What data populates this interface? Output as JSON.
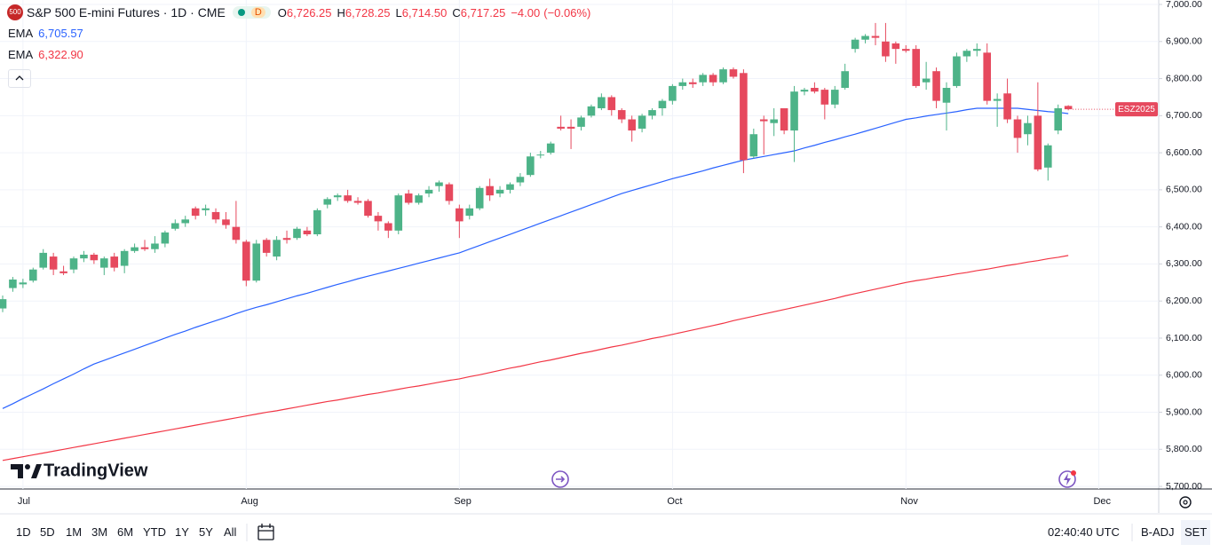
{
  "header": {
    "badge": "500",
    "symbol": "S&P 500 E-mini Futures · 1D · CME",
    "status": "D",
    "ohlc": [
      {
        "key": "O",
        "value": 6726.25,
        "label": "6,726.25"
      },
      {
        "key": "H",
        "value": 6728.25,
        "label": "6,728.25"
      },
      {
        "key": "L",
        "value": 6714.5,
        "label": "6,714.50"
      },
      {
        "key": "C",
        "value": 6717.25,
        "label": "6,717.25"
      }
    ],
    "change": {
      "value": -4,
      "label": "−4.00"
    },
    "change_pct": {
      "value": -0.06,
      "label": "(−0.06%)"
    }
  },
  "chart_data": {
    "type": "candlestick",
    "grid": true,
    "up_color": "#4db388",
    "down_color": "#e6495e",
    "last_label": "ESZ2025",
    "categories": [
      null,
      null,
      "Jul",
      null,
      null,
      null,
      null,
      null,
      null,
      null,
      null,
      null,
      null,
      null,
      null,
      null,
      null,
      null,
      null,
      null,
      null,
      null,
      null,
      null,
      "Aug",
      null,
      null,
      null,
      null,
      null,
      null,
      null,
      null,
      null,
      null,
      null,
      null,
      null,
      null,
      null,
      null,
      null,
      null,
      null,
      null,
      "Sep",
      null,
      null,
      null,
      null,
      null,
      null,
      null,
      null,
      null,
      null,
      null,
      null,
      null,
      null,
      null,
      null,
      null,
      null,
      null,
      null,
      "Oct",
      null,
      null,
      null,
      null,
      null,
      null,
      null,
      null,
      null,
      null,
      null,
      null,
      null,
      null,
      null,
      null,
      null,
      null,
      null,
      null,
      null,
      null,
      "Nov",
      null,
      null,
      null,
      null,
      null,
      null,
      null,
      null,
      null,
      null,
      null,
      null,
      null,
      null,
      null,
      null,
      null,
      null,
      "Dec"
    ],
    "open": [
      6180,
      6235,
      6245,
      6255,
      6290,
      6320,
      6280,
      6285,
      6315,
      6325,
      6290,
      6320,
      6295,
      6335,
      6345,
      6340,
      6355,
      6395,
      6410,
      6450,
      6445,
      6440,
      6420,
      6400,
      6360,
      6255,
      6365,
      6320,
      6370,
      6370,
      6390,
      6380,
      6460,
      6480,
      6485,
      6470,
      6470,
      6430,
      6410,
      6390,
      6490,
      6465,
      6490,
      6510,
      6515,
      6450,
      6430,
      6450,
      6510,
      6490,
      6500,
      6520,
      6540,
      6595,
      6600,
      6670,
      6670,
      6670,
      6700,
      6720,
      6750,
      6715,
      6690,
      6665,
      6700,
      6720,
      6740,
      6780,
      6790,
      6790,
      6810,
      6790,
      6825,
      6815,
      6590,
      6690,
      6680,
      6720,
      6660,
      6765,
      6775,
      6770,
      6730,
      6775,
      6880,
      6905,
      6915,
      6900,
      6895,
      6880,
      6880,
      6790,
      6820,
      6735,
      6780,
      6860,
      6875,
      6870,
      6740,
      6760,
      6690,
      6650,
      6700,
      6560,
      6660,
      6726.25,
      null,
      null,
      null
    ],
    "high": [
      6215,
      6265,
      6260,
      6290,
      6340,
      6330,
      6295,
      6320,
      6335,
      6330,
      6320,
      6330,
      6340,
      6355,
      6365,
      6375,
      6390,
      6420,
      6430,
      6455,
      6460,
      6450,
      6440,
      6470,
      6365,
      6365,
      6370,
      6375,
      6390,
      6400,
      6400,
      6450,
      6480,
      6490,
      6500,
      6480,
      6475,
      6440,
      6415,
      6490,
      6500,
      6490,
      6510,
      6525,
      6520,
      6460,
      6460,
      6510,
      6530,
      6510,
      6520,
      6545,
      6600,
      6605,
      6630,
      6700,
      6690,
      6700,
      6730,
      6760,
      6755,
      6720,
      6700,
      6705,
      6720,
      6745,
      6785,
      6800,
      6800,
      6815,
      6815,
      6830,
      6830,
      6825,
      6665,
      6700,
      6720,
      6720,
      6780,
      6775,
      6790,
      6775,
      6780,
      6840,
      6910,
      6920,
      6950,
      6950,
      6900,
      6890,
      6890,
      6845,
      6830,
      6790,
      6870,
      6880,
      6895,
      6895,
      6760,
      6800,
      6700,
      6700,
      6790,
      6625,
      6730,
      6728.25,
      null,
      null,
      null
    ],
    "low": [
      6170,
      6225,
      6235,
      6250,
      6285,
      6270,
      6270,
      6275,
      6305,
      6300,
      6270,
      6280,
      6275,
      6330,
      6335,
      6330,
      6345,
      6390,
      6400,
      6420,
      6430,
      6410,
      6395,
      6355,
      6240,
      6250,
      6320,
      6310,
      6355,
      6365,
      6375,
      6375,
      6450,
      6470,
      6465,
      6460,
      6425,
      6390,
      6370,
      6380,
      6460,
      6460,
      6480,
      6495,
      6460,
      6370,
      6420,
      6445,
      6470,
      6480,
      6490,
      6510,
      6535,
      6585,
      6595,
      6660,
      6610,
      6660,
      6695,
      6715,
      6700,
      6680,
      6630,
      6655,
      6690,
      6700,
      6730,
      6770,
      6775,
      6780,
      6780,
      6785,
      6800,
      6545,
      6585,
      6595,
      6645,
      6650,
      6575,
      6755,
      6760,
      6690,
      6720,
      6770,
      6870,
      6895,
      6890,
      6845,
      6840,
      6870,
      6775,
      6770,
      6720,
      6660,
      6775,
      6845,
      6860,
      6730,
      6670,
      6680,
      6600,
      6620,
      6550,
      6525,
      6650,
      6714.5,
      null,
      null,
      null
    ],
    "close": [
      6205,
      6258,
      6250,
      6285,
      6330,
      6285,
      6275,
      6315,
      6325,
      6310,
      6315,
      6290,
      6335,
      6345,
      6340,
      6355,
      6385,
      6410,
      6420,
      6430,
      6450,
      6420,
      6405,
      6365,
      6255,
      6355,
      6330,
      6365,
      6365,
      6395,
      6380,
      6445,
      6475,
      6485,
      6470,
      6465,
      6430,
      6415,
      6390,
      6485,
      6465,
      6485,
      6500,
      6520,
      6470,
      6415,
      6450,
      6505,
      6485,
      6500,
      6515,
      6535,
      6590,
      6595,
      6625,
      6665,
      6665,
      6695,
      6725,
      6750,
      6715,
      6690,
      6660,
      6700,
      6715,
      6740,
      6780,
      6790,
      6785,
      6810,
      6790,
      6825,
      6805,
      6580,
      6650,
      6685,
      6690,
      6660,
      6765,
      6770,
      6765,
      6730,
      6770,
      6820,
      6905,
      6915,
      6910,
      6860,
      6880,
      6875,
      6780,
      6800,
      6740,
      6775,
      6860,
      6875,
      6880,
      6740,
      6745,
      6690,
      6640,
      6680,
      6555,
      6620,
      6720,
      6717.25,
      null,
      null,
      null
    ],
    "overlays": [
      {
        "name": "EMA",
        "color": "#2962ff",
        "value": 6705.57,
        "value_label": "6,705.57",
        "values": [
          5910,
          5923,
          5937,
          5950,
          5963,
          5977,
          5990,
          6003,
          6017,
          6030,
          6040,
          6050,
          6060,
          6070,
          6080,
          6090,
          6100,
          6110,
          6119,
          6129,
          6138,
          6147,
          6156,
          6166,
          6175,
          6183,
          6190,
          6198,
          6206,
          6214,
          6221,
          6229,
          6237,
          6245,
          6252,
          6260,
          6267,
          6274,
          6281,
          6288,
          6295,
          6302,
          6309,
          6316,
          6323,
          6330,
          6340,
          6350,
          6360,
          6370,
          6380,
          6390,
          6400,
          6410,
          6420,
          6430,
          6440,
          6450,
          6460,
          6470,
          6480,
          6490,
          6498,
          6506,
          6514,
          6522,
          6530,
          6537,
          6544,
          6551,
          6559,
          6566,
          6573,
          6580,
          6585,
          6590,
          6595,
          6600,
          6605,
          6613,
          6620,
          6628,
          6635,
          6643,
          6650,
          6658,
          6666,
          6674,
          6682,
          6690,
          6694,
          6699,
          6703,
          6707,
          6711,
          6716,
          6720,
          6720,
          6720,
          6720,
          6720,
          6717,
          6714,
          6711,
          6709,
          6705.57,
          null,
          null,
          null
        ]
      },
      {
        "name": "EMA",
        "color": "#f23645",
        "value": 6322.9,
        "value_label": "6,322.90",
        "values": [
          5770,
          5775,
          5780,
          5785,
          5790,
          5795,
          5800,
          5805,
          5810,
          5815,
          5820,
          5825,
          5830,
          5835,
          5840,
          5845,
          5850,
          5855,
          5860,
          5865,
          5870,
          5875,
          5880,
          5885,
          5890,
          5895,
          5900,
          5904,
          5909,
          5914,
          5919,
          5924,
          5929,
          5933,
          5938,
          5943,
          5948,
          5952,
          5957,
          5962,
          5967,
          5971,
          5976,
          5981,
          5986,
          5990,
          5996,
          6001,
          6007,
          6013,
          6019,
          6024,
          6030,
          6036,
          6041,
          6047,
          6053,
          6059,
          6064,
          6070,
          6076,
          6081,
          6087,
          6093,
          6099,
          6104,
          6110,
          6116,
          6122,
          6128,
          6134,
          6140,
          6147,
          6153,
          6159,
          6165,
          6171,
          6177,
          6183,
          6189,
          6195,
          6201,
          6207,
          6214,
          6220,
          6226,
          6232,
          6238,
          6244,
          6250,
          6255,
          6259,
          6264,
          6268,
          6273,
          6277,
          6282,
          6286,
          6291,
          6296,
          6300,
          6305,
          6309,
          6314,
          6318,
          6322.9,
          null,
          null,
          null
        ]
      }
    ],
    "ylim": [
      5693,
      7012
    ],
    "yticks": [
      {
        "value": 5700,
        "label": "5,700.00"
      },
      {
        "value": 5800,
        "label": "5,800.00"
      },
      {
        "value": 5900,
        "label": "5,900.00"
      },
      {
        "value": 6000,
        "label": "6,000.00"
      },
      {
        "value": 6100,
        "label": "6,100.00"
      },
      {
        "value": 6200,
        "label": "6,200.00"
      },
      {
        "value": 6300,
        "label": "6,300.00"
      },
      {
        "value": 6400,
        "label": "6,400.00"
      },
      {
        "value": 6500,
        "label": "6,500.00"
      },
      {
        "value": 6600,
        "label": "6,600.00"
      },
      {
        "value": 6700,
        "label": "6,700.00"
      },
      {
        "value": 6800,
        "label": "6,800.00"
      },
      {
        "value": 6900,
        "label": "6,900.00"
      },
      {
        "value": 7000,
        "label": "7,000.00"
      }
    ]
  },
  "branding": "TradingView",
  "toolbar": {
    "ranges": [
      "1D",
      "5D",
      "1M",
      "3M",
      "6M",
      "YTD",
      "1Y",
      "5Y",
      "All"
    ],
    "clock": "02:40:40 UTC",
    "buttons": [
      "B-ADJ",
      "SET"
    ]
  }
}
